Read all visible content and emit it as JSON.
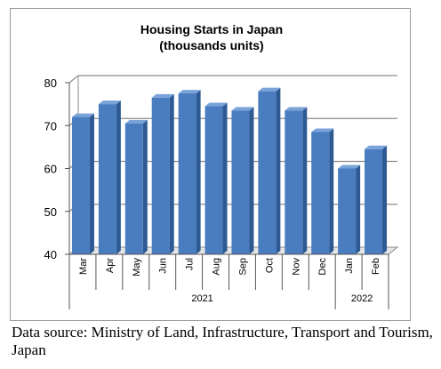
{
  "chart_data": {
    "type": "bar",
    "title": "Housing Starts in Japan",
    "subtitle": "(thousands units)",
    "categories": [
      "Mar",
      "Apr",
      "May",
      "Jun",
      "Jul",
      "Aug",
      "Sep",
      "Oct",
      "Nov",
      "Dec",
      "Jan",
      "Feb"
    ],
    "years": [
      {
        "label": "2021",
        "count": 10
      },
      {
        "label": "2022",
        "count": 2
      }
    ],
    "values": [
      72.0,
      75.0,
      70.5,
      76.5,
      77.5,
      74.5,
      73.5,
      78.0,
      73.5,
      68.5,
      60.0,
      64.5
    ],
    "ylim": [
      40,
      80
    ],
    "yticks": [
      40,
      50,
      60,
      70,
      80
    ],
    "grid": true,
    "style": "3d",
    "colors": {
      "bar_front": "#4a7dc0",
      "bar_side": "#2e5a94",
      "bar_top": "#7aa3da",
      "grid": "#8c8c8c",
      "wall": "#8c8c8c"
    }
  },
  "source_note": "Data source: Ministry of Land, Infrastructure, Transport and Tourism, Japan"
}
